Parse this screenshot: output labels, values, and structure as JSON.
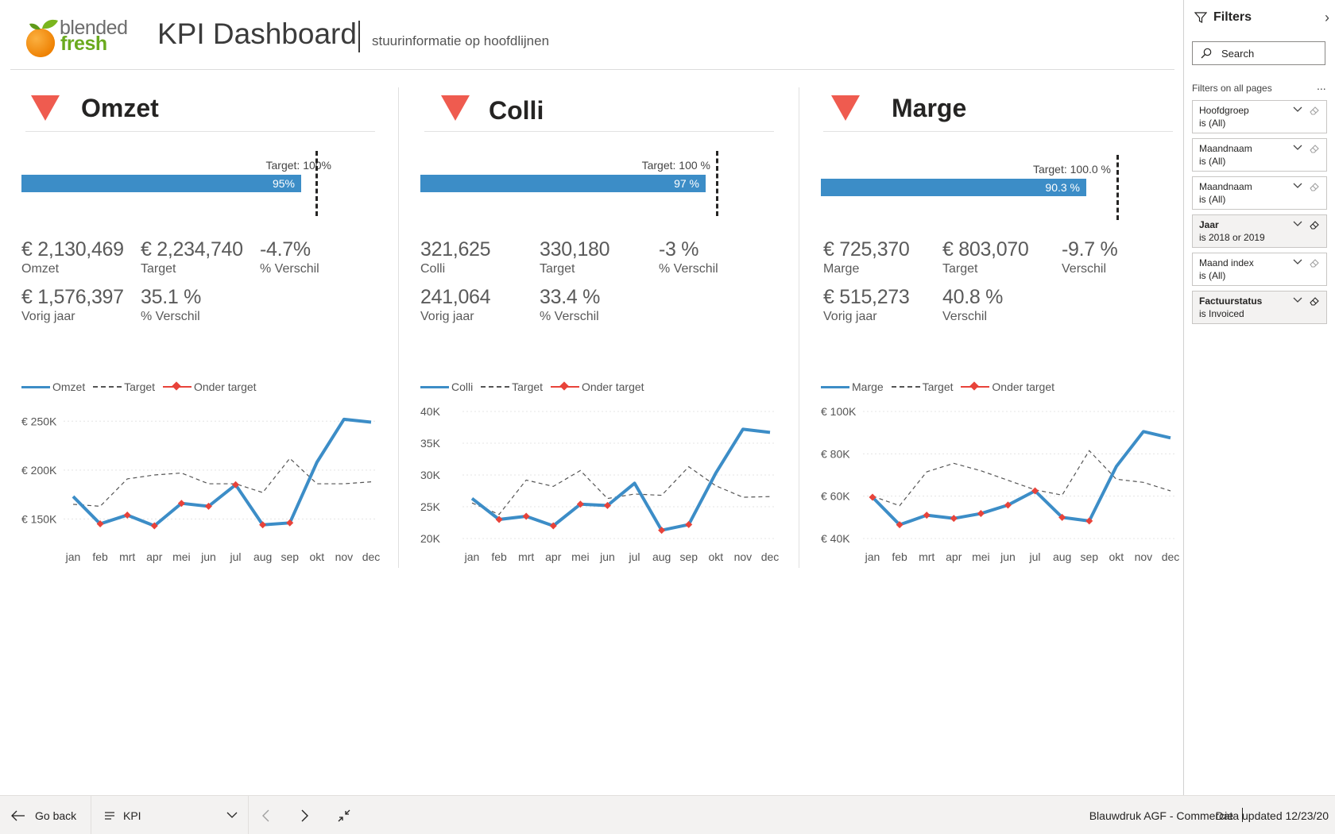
{
  "header": {
    "logo_line1": "blended",
    "logo_line2": "fresh",
    "title": "KPI Dashboard",
    "subtitle": "stuurinformatie op hoofdlijnen"
  },
  "panels": [
    {
      "title": "Omzet",
      "target_label": "Target: 100%",
      "bar_label": "95%",
      "bar_fraction": 0.95,
      "kpis": [
        {
          "value": "€ 2,130,469",
          "label": "Omzet"
        },
        {
          "value": "€ 2,234,740",
          "label": "Target"
        },
        {
          "value": "-4.7%",
          "label": "% Verschil"
        },
        {
          "value": "€ 1,576,397",
          "label": "Vorig jaar"
        },
        {
          "value": "35.1 %",
          "label": "% Verschil"
        }
      ],
      "legend": [
        "Omzet",
        "Target",
        "Onder target"
      ]
    },
    {
      "title": "Colli",
      "target_label": "Target: 100 %",
      "bar_label": "97 %",
      "bar_fraction": 0.97,
      "kpis": [
        {
          "value": "321,625",
          "label": "Colli"
        },
        {
          "value": "330,180",
          "label": "Target"
        },
        {
          "value": "-3 %",
          "label": "% Verschil"
        },
        {
          "value": "241,064",
          "label": "Vorig jaar"
        },
        {
          "value": "33.4 %",
          "label": "% Verschil"
        }
      ],
      "legend": [
        "Colli",
        "Target",
        "Onder target"
      ]
    },
    {
      "title": "Marge",
      "target_label": "Target: 100.0 %",
      "bar_label": "90.3 %",
      "bar_fraction": 0.903,
      "kpis": [
        {
          "value": "€ 725,370",
          "label": "Marge"
        },
        {
          "value": "€ 803,070",
          "label": "Target"
        },
        {
          "value": "-9.7 %",
          "label": "Verschil"
        },
        {
          "value": "€ 515,273",
          "label": "Vorig jaar"
        },
        {
          "value": "40.8 %",
          "label": "Verschil"
        }
      ],
      "legend": [
        "Marge",
        "Target",
        "Onder target"
      ]
    }
  ],
  "chart_data": [
    {
      "type": "line",
      "categories": [
        "jan",
        "feb",
        "mrt",
        "apr",
        "mei",
        "jun",
        "jul",
        "aug",
        "sep",
        "okt",
        "nov",
        "dec"
      ],
      "y_ticks": [
        "€ 150K",
        "€ 200K",
        "€ 250K"
      ],
      "ylim": [
        130000,
        260000
      ],
      "tick_values": [
        150000,
        200000,
        250000
      ],
      "series": [
        {
          "name": "Omzet",
          "values": [
            173000,
            145000,
            154000,
            143000,
            166000,
            163000,
            185000,
            144000,
            146000,
            208000,
            252000,
            249000
          ]
        },
        {
          "name": "Target",
          "values": [
            165000,
            163000,
            191000,
            195000,
            197000,
            186000,
            186000,
            177000,
            212000,
            186000,
            186000,
            188000
          ]
        }
      ],
      "below_target_markers": [
        false,
        true,
        true,
        true,
        true,
        true,
        true,
        true,
        true,
        false,
        false,
        false
      ]
    },
    {
      "type": "line",
      "categories": [
        "jan",
        "feb",
        "mrt",
        "apr",
        "mei",
        "jun",
        "jul",
        "aug",
        "sep",
        "okt",
        "nov",
        "dec"
      ],
      "y_ticks": [
        "20K",
        "25K",
        "30K",
        "35K",
        "40K"
      ],
      "ylim": [
        20000,
        40000
      ],
      "tick_values": [
        20000,
        25000,
        30000,
        35000,
        40000
      ],
      "series": [
        {
          "name": "Colli",
          "values": [
            26300,
            23000,
            23500,
            22000,
            25400,
            25200,
            28700,
            21300,
            22200,
            30300,
            37200,
            36700
          ]
        },
        {
          "name": "Target",
          "values": [
            25600,
            23800,
            29200,
            28200,
            30700,
            26300,
            27000,
            26800,
            31300,
            28300,
            26500,
            26600
          ]
        }
      ],
      "below_target_markers": [
        false,
        true,
        true,
        true,
        true,
        true,
        false,
        true,
        true,
        false,
        false,
        false
      ]
    },
    {
      "type": "line",
      "categories": [
        "jan",
        "feb",
        "mrt",
        "apr",
        "mei",
        "jun",
        "jul",
        "aug",
        "sep",
        "okt",
        "nov",
        "dec"
      ],
      "y_ticks": [
        "€ 40K",
        "€ 60K",
        "€ 80K",
        "€ 100K"
      ],
      "ylim": [
        40000,
        100000
      ],
      "tick_values": [
        40000,
        60000,
        80000,
        100000
      ],
      "series": [
        {
          "name": "Marge",
          "values": [
            59500,
            46500,
            51000,
            49500,
            51800,
            55800,
            62500,
            50000,
            48300,
            74000,
            90500,
            87500
          ]
        },
        {
          "name": "Target",
          "values": [
            60000,
            55500,
            71500,
            75500,
            72000,
            67500,
            63000,
            60500,
            81500,
            68000,
            66500,
            62500
          ]
        }
      ],
      "below_target_markers": [
        true,
        true,
        true,
        true,
        true,
        true,
        true,
        true,
        true,
        false,
        false,
        false
      ]
    }
  ],
  "filters": {
    "title": "Filters",
    "search_placeholder": "Search",
    "section_label": "Filters on all pages",
    "more": "...",
    "items": [
      {
        "name": "Hoofdgroep",
        "value": "is (All)",
        "active": false
      },
      {
        "name": "Maandnaam",
        "value": "is (All)",
        "active": false
      },
      {
        "name": "Maandnaam",
        "value": "is (All)",
        "active": false
      },
      {
        "name": "Jaar",
        "value": "is 2018 or 2019",
        "active": true
      },
      {
        "name": "Maand index",
        "value": "is (All)",
        "active": false
      },
      {
        "name": "Factuurstatus",
        "value": "is Invoiced",
        "active": true
      }
    ]
  },
  "bottombar": {
    "go_back": "Go back",
    "page": "KPI",
    "report_name": "Blauwdruk AGF - Commercie",
    "data_updated": "Data updated 12/23/20"
  },
  "colors": {
    "actual": "#3c8dc7",
    "target": "#555555",
    "below_target": "#e8433a",
    "indicator": "#ef5b4f"
  }
}
